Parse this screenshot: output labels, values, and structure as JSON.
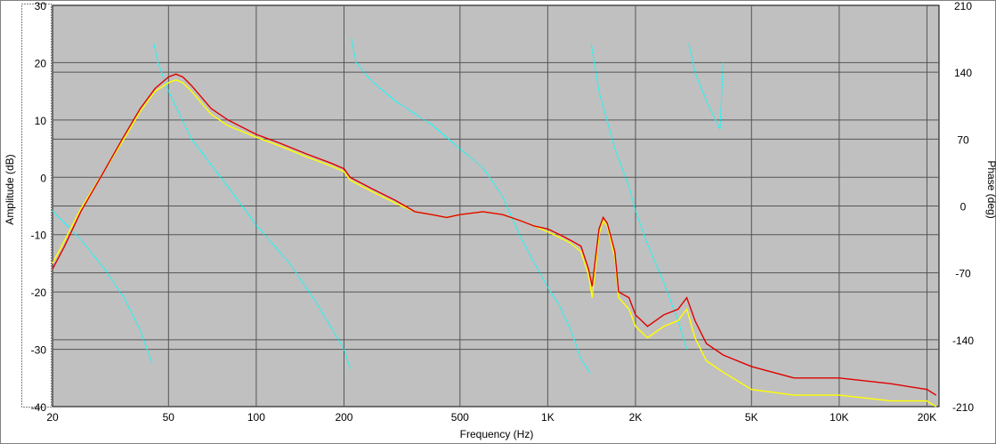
{
  "chart_data": {
    "type": "line",
    "xlabel": "Frequency (Hz)",
    "ylabel": "Amplitude (dB)",
    "y2label": "Phase (deg)",
    "xscale": "log",
    "xlim": [
      20,
      22000
    ],
    "ylim": [
      -40,
      30
    ],
    "y2lim": [
      -210,
      210
    ],
    "grid": true,
    "xticks": [
      {
        "value": 20,
        "label": "20"
      },
      {
        "value": 50,
        "label": "50"
      },
      {
        "value": 100,
        "label": "100"
      },
      {
        "value": 200,
        "label": "200"
      },
      {
        "value": 500,
        "label": "500"
      },
      {
        "value": 1000,
        "label": "1K"
      },
      {
        "value": 2000,
        "label": "2K"
      },
      {
        "value": 5000,
        "label": "5K"
      },
      {
        "value": 10000,
        "label": "10K"
      },
      {
        "value": 20000,
        "label": "20K"
      }
    ],
    "yticks": [
      30,
      20,
      10,
      0,
      -10,
      -20,
      -30,
      -40
    ],
    "y2ticks": [
      210,
      140,
      70,
      0,
      -70,
      -140,
      -210
    ],
    "colors": {
      "red": "#e00000",
      "yellow": "#ffff00",
      "cyan": "#00ffff",
      "plot_bg": "#c0c0c0",
      "grid": "#555555"
    },
    "series": [
      {
        "color": "red",
        "axis": "left",
        "x": [
          20,
          22,
          25,
          30,
          35,
          40,
          45,
          50,
          53,
          56,
          60,
          70,
          80,
          100,
          120,
          150,
          180,
          200,
          210,
          250,
          300,
          350,
          400,
          450,
          500,
          600,
          700,
          800,
          900,
          1000,
          1100,
          1200,
          1300,
          1380,
          1420,
          1500,
          1550,
          1600,
          1700,
          1750,
          1900,
          2000,
          2200,
          2500,
          2800,
          3000,
          3200,
          3500,
          4000,
          5000,
          7000,
          10000,
          15000,
          20000,
          21500
        ],
        "y": [
          -16,
          -12,
          -6,
          1,
          7,
          12,
          15.5,
          17.5,
          18,
          17.5,
          16,
          12,
          10,
          7.5,
          6,
          4,
          2.5,
          1.5,
          0,
          -2,
          -4,
          -6,
          -6.5,
          -7,
          -6.5,
          -6,
          -6.5,
          -7.5,
          -8.5,
          -9,
          -10,
          -11,
          -12,
          -16,
          -19,
          -9,
          -7,
          -8,
          -13,
          -20,
          -21,
          -24,
          -26,
          -24,
          -23,
          -21,
          -25,
          -29,
          -31,
          -33,
          -35,
          -35,
          -36,
          -37,
          -38
        ]
      },
      {
        "color": "yellow",
        "axis": "left",
        "x": [
          20,
          22,
          25,
          30,
          35,
          40,
          45,
          50,
          53,
          56,
          60,
          70,
          80,
          100,
          120,
          150,
          180,
          200,
          210,
          250,
          300,
          350,
          400,
          450,
          500,
          600,
          700,
          800,
          900,
          1000,
          1100,
          1200,
          1300,
          1380,
          1420,
          1500,
          1550,
          1600,
          1700,
          1750,
          1900,
          2000,
          2200,
          2500,
          2800,
          3000,
          3200,
          3500,
          4000,
          5000,
          7000,
          10000,
          15000,
          20000,
          21500
        ],
        "y": [
          -15,
          -11,
          -5.5,
          1,
          6.5,
          11.5,
          15,
          16.5,
          17,
          16.5,
          15,
          11,
          9,
          7,
          5.5,
          3.5,
          2,
          1,
          -0.5,
          -2.5,
          -4.5,
          -6,
          -6.5,
          -7,
          -6.5,
          -6,
          -6.5,
          -7.5,
          -8.5,
          -9.5,
          -10.5,
          -11.5,
          -13,
          -17,
          -21,
          -10,
          -7.5,
          -8.5,
          -14,
          -21,
          -23,
          -26,
          -28,
          -26,
          -25,
          -23,
          -28,
          -32,
          -34,
          -37,
          -38,
          -38,
          -39,
          -39,
          -40
        ]
      },
      {
        "color": "cyan",
        "axis": "right",
        "x": [
          20,
          25,
          30,
          35,
          40,
          44,
          44.5,
          46,
          50,
          60,
          80,
          100,
          130,
          160,
          200,
          210,
          212,
          220,
          250,
          300,
          400,
          500,
          600,
          700,
          800,
          900,
          1000,
          1100,
          1200,
          1300,
          1400,
          1410,
          1500,
          1700,
          1900,
          2000,
          2200,
          2500,
          2800,
          3000,
          3050,
          3200,
          3500,
          3900,
          4000,
          4100
        ],
        "y": [
          -5,
          -35,
          -65,
          -95,
          -130,
          -165,
          170,
          150,
          120,
          70,
          20,
          -20,
          -60,
          -100,
          -150,
          -170,
          175,
          150,
          130,
          110,
          85,
          60,
          40,
          10,
          -30,
          -60,
          -85,
          -105,
          -130,
          -160,
          -175,
          170,
          120,
          60,
          20,
          -5,
          -40,
          -80,
          -120,
          -150,
          170,
          140,
          110,
          80,
          150,
          -190
        ]
      }
    ]
  }
}
